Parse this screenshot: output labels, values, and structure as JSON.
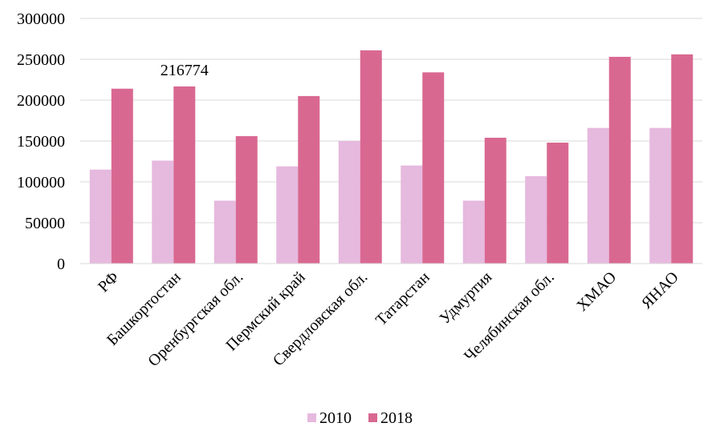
{
  "chart_data": {
    "type": "bar",
    "title": "",
    "xlabel": "",
    "ylabel": "",
    "ylim": [
      0,
      300000
    ],
    "yticks": [
      0,
      50000,
      100000,
      150000,
      200000,
      250000,
      300000
    ],
    "grid": true,
    "legend_position": "bottom",
    "categories": [
      "РФ",
      "Башкортостан",
      "Оренбургская обл.",
      "Пермский край",
      "Свердловская обл.",
      "Татарстан",
      "Удмуртия",
      "Челябинская обл.",
      "ХМАО",
      "ЯНАО"
    ],
    "series": [
      {
        "name": "2010",
        "color": "#E6B9DE",
        "values": [
          115000,
          126000,
          77000,
          119000,
          150000,
          120000,
          77000,
          107000,
          166000,
          166000
        ]
      },
      {
        "name": "2018",
        "color": "#D96891",
        "values": [
          214000,
          216774,
          156000,
          205000,
          261000,
          234000,
          154000,
          148000,
          253000,
          256000
        ]
      }
    ],
    "data_labels": [
      {
        "series": 1,
        "category": 1,
        "text": "216774"
      }
    ]
  }
}
